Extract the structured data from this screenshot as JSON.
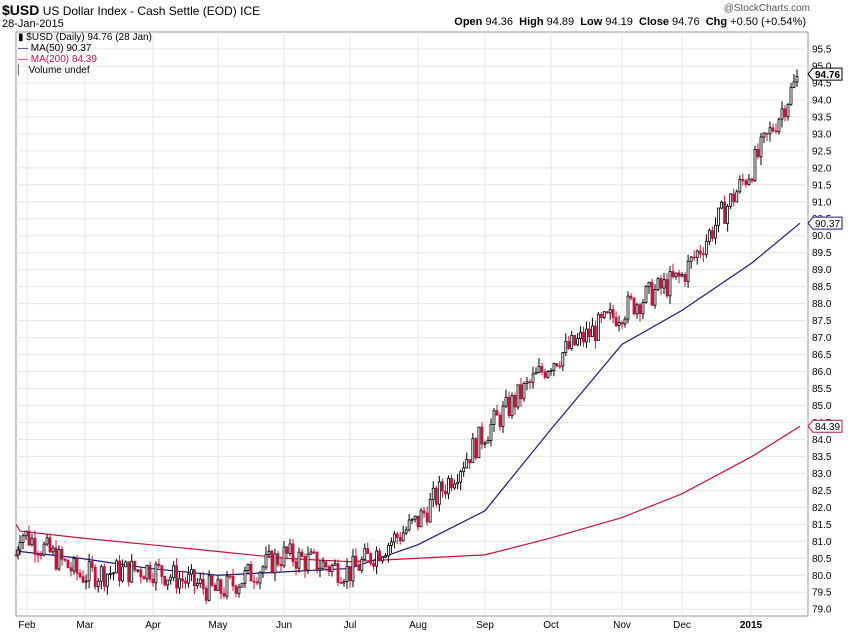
{
  "header": {
    "symbol": "$USD",
    "name": "US Dollar Index - Cash Settle (EOD)",
    "exchange": "ICE",
    "date": "28-Jan-2015",
    "watermark": "@StockCharts.com",
    "open_label": "Open",
    "open": "94.36",
    "high_label": "High",
    "high": "94.89",
    "low_label": "Low",
    "low": "94.19",
    "close_label": "Close",
    "close": "94.76",
    "chg_label": "Chg",
    "chg": "+0.50 (+0.54%)"
  },
  "legend": {
    "price": "$USD (Daily) 94.76 (28 Jan)",
    "ma50": "MA(50) 90.37",
    "ma200": "MA(200) 84.39",
    "volume": "Volume undef"
  },
  "colors": {
    "up": "#000000",
    "down": "#c0143c",
    "ma50": "#1a1a7a",
    "ma200": "#c0143c",
    "grid": "#e6e6e6"
  },
  "chart_data": {
    "type": "line",
    "ylim": [
      78.8,
      96
    ],
    "yticks": [
      "79.0",
      "79.5",
      "80.0",
      "80.5",
      "81.0",
      "81.5",
      "82.0",
      "82.5",
      "83.0",
      "83.5",
      "84.0",
      "84.5",
      "85.0",
      "85.5",
      "86.0",
      "86.5",
      "87.0",
      "87.5",
      "88.0",
      "88.5",
      "89.0",
      "89.5",
      "90.0",
      "90.5",
      "91.0",
      "91.5",
      "92.0",
      "92.5",
      "93.0",
      "93.5",
      "94.0",
      "94.5",
      "95.0",
      "95.5"
    ],
    "xlabels": [
      "Feb",
      "Mar",
      "Apr",
      "May",
      "Jun",
      "Jul",
      "Aug",
      "Sep",
      "Oct",
      "Nov",
      "Dec",
      "2015"
    ],
    "price_label": "94.76",
    "ma50_label": "90.37",
    "ma200_label": "84.39",
    "series": [
      {
        "name": "$USD",
        "x": [
          "Jan",
          "Feb",
          "Mar",
          "Apr",
          "May",
          "Jun",
          "Jul",
          "Aug",
          "Sep",
          "Oct",
          "Nov",
          "Dec",
          "2015",
          "Jan 28"
        ],
        "values": [
          80.6,
          81.3,
          80.0,
          80.2,
          79.5,
          80.6,
          80.1,
          81.6,
          84.2,
          86.3,
          87.8,
          88.8,
          92.0,
          94.76
        ]
      },
      {
        "name": "MA(50)",
        "x": [
          "Jan",
          "Feb",
          "Mar",
          "Apr",
          "May",
          "Jun",
          "Jul",
          "Aug",
          "Sep",
          "Oct",
          "Nov",
          "Dec",
          "2015",
          "Jan 28"
        ],
        "values": [
          80.7,
          80.7,
          80.5,
          80.2,
          80.0,
          80.1,
          80.2,
          80.9,
          81.9,
          84.3,
          86.8,
          87.8,
          89.2,
          90.37
        ]
      },
      {
        "name": "MA(200)",
        "x": [
          "Jan",
          "Feb",
          "Mar",
          "Apr",
          "May",
          "Jun",
          "Jul",
          "Aug",
          "Sep",
          "Oct",
          "Nov",
          "Dec",
          "2015",
          "Jan 28"
        ],
        "values": [
          81.5,
          81.3,
          81.1,
          80.9,
          80.7,
          80.5,
          80.4,
          80.5,
          80.6,
          81.1,
          81.7,
          82.4,
          83.5,
          84.39
        ]
      }
    ]
  }
}
